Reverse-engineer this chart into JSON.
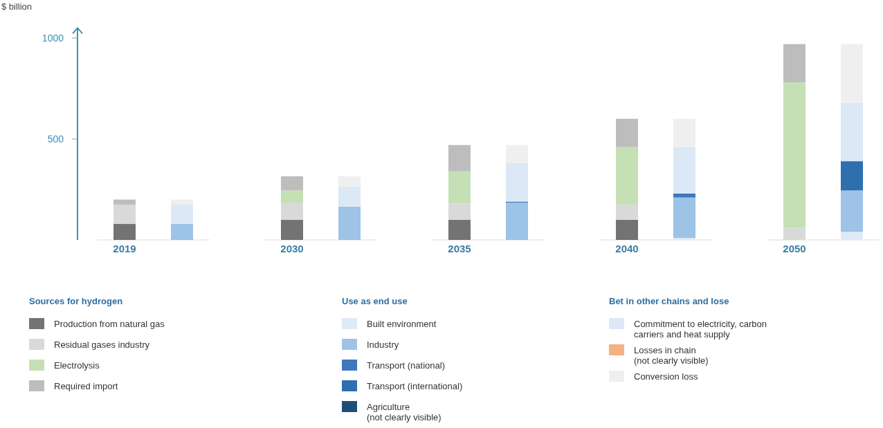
{
  "chart_data": {
    "type": "bar",
    "stacked": true,
    "ylabel": "$ billion",
    "categories": [
      "2019",
      null,
      "2030",
      null,
      "2035",
      null,
      "2040",
      null,
      "2050",
      null
    ],
    "ylim": [
      0,
      1050
    ],
    "yticks": [
      500,
      1000
    ],
    "legend": "bottom",
    "annotations": [
      "Sources for hydrogen",
      "Use as end use",
      "Bet in other chains and lose"
    ],
    "series": [
      {
        "name": "Production from natural gas",
        "color": "#737373",
        "values": [
          80,
          null,
          100,
          null,
          100,
          null,
          100,
          null,
          null,
          null
        ]
      },
      {
        "name": "Residual gases industry",
        "color": "#d9d9d9",
        "values": [
          95,
          null,
          85,
          null,
          80,
          null,
          75,
          null,
          60,
          null
        ]
      },
      {
        "name": "Electrolysis",
        "color": "#c5e0b4",
        "values": [
          null,
          null,
          60,
          null,
          160,
          null,
          285,
          null,
          720,
          null
        ]
      },
      {
        "name": "Required import",
        "color": "#bdbdbd",
        "values": [
          25,
          null,
          70,
          null,
          130,
          null,
          140,
          null,
          190,
          null
        ]
      },
      {
        "name": "Built environment",
        "color": "#deebf7",
        "values": [
          null,
          null,
          null,
          null,
          null,
          null,
          null,
          10,
          null,
          40
        ]
      },
      {
        "name": "Industry",
        "color": "#9dc3e6",
        "values": [
          null,
          80,
          null,
          165,
          null,
          185,
          null,
          200,
          null,
          205
        ]
      },
      {
        "name": "Transport (national)",
        "color": "#3e78bd",
        "values": [
          null,
          null,
          null,
          null,
          null,
          5,
          null,
          20,
          null,
          null
        ]
      },
      {
        "name": "Transport (international)",
        "color": "#2e6fb0",
        "values": [
          null,
          null,
          null,
          null,
          null,
          null,
          null,
          null,
          null,
          145
        ]
      },
      {
        "name": "Agriculture (not clearly visible)",
        "color": "#1f4e79",
        "values": [
          null,
          null,
          null,
          null,
          null,
          null,
          null,
          null,
          null,
          null
        ]
      },
      {
        "name": "Commitment to electricity, carbon carriers and heat supply",
        "color": "#dce8f6",
        "values": [
          null,
          95,
          null,
          100,
          null,
          190,
          null,
          230,
          null,
          290
        ]
      },
      {
        "name": "Losses in chain (not clearly visible)",
        "color": "#f4b183",
        "values": [
          null,
          null,
          null,
          null,
          null,
          null,
          null,
          null,
          null,
          null
        ]
      },
      {
        "name": "Conversion loss",
        "color": "#efefef",
        "values": [
          null,
          25,
          null,
          50,
          null,
          90,
          null,
          140,
          null,
          290
        ]
      }
    ]
  }
}
